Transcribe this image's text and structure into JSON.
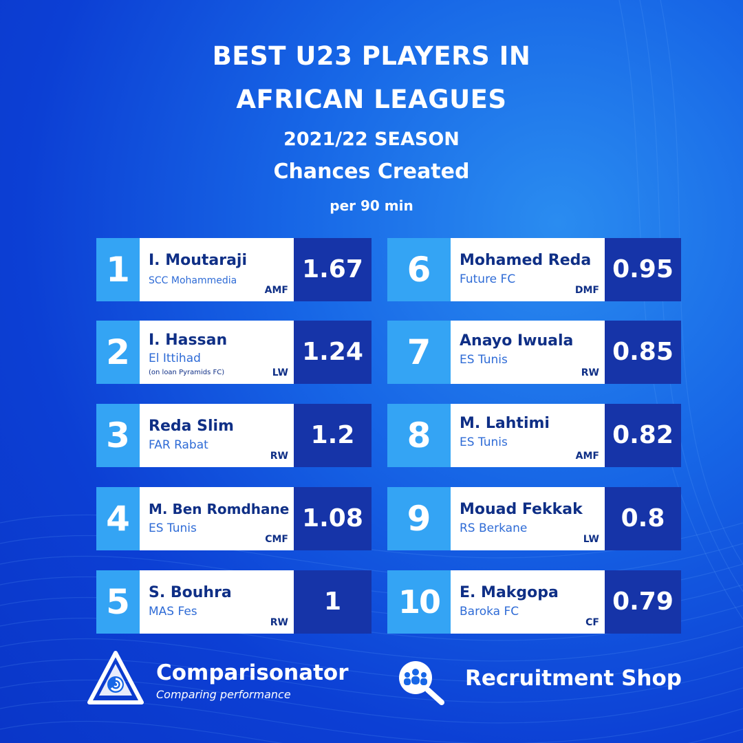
{
  "header": {
    "title_line1": "BEST U23 PLAYERS IN",
    "title_line2": "AFRICAN LEAGUES",
    "season": "2021/22 SEASON",
    "metric": "Chances Created",
    "unit": "per 90 min"
  },
  "players": [
    {
      "rank": "1",
      "name": "I. Moutaraji",
      "club": "SCC Mohammedia",
      "note": "",
      "position": "AMF",
      "value": "1.67"
    },
    {
      "rank": "2",
      "name": "I. Hassan",
      "club": "El Ittihad",
      "note": "(on loan Pyramids FC)",
      "position": "LW",
      "value": "1.24"
    },
    {
      "rank": "3",
      "name": "Reda Slim",
      "club": "FAR Rabat",
      "note": "",
      "position": "RW",
      "value": "1.2"
    },
    {
      "rank": "4",
      "name": "M. Ben Romdhane",
      "club": "ES Tunis",
      "note": "",
      "position": "CMF",
      "value": "1.08"
    },
    {
      "rank": "5",
      "name": "S. Bouhra",
      "club": "MAS Fes",
      "note": "",
      "position": "RW",
      "value": "1"
    },
    {
      "rank": "6",
      "name": "Mohamed Reda",
      "club": "Future FC",
      "note": "",
      "position": "DMF",
      "value": "0.95"
    },
    {
      "rank": "7",
      "name": "Anayo Iwuala",
      "club": "ES Tunis",
      "note": "",
      "position": "RW",
      "value": "0.85"
    },
    {
      "rank": "8",
      "name": "M. Lahtimi",
      "club": "ES Tunis",
      "note": "",
      "position": "AMF",
      "value": "0.82"
    },
    {
      "rank": "9",
      "name": "Mouad Fekkak",
      "club": "RS Berkane",
      "note": "",
      "position": "LW",
      "value": "0.8"
    },
    {
      "rank": "10",
      "name": "E. Makgopa",
      "club": "Baroka FC",
      "note": "",
      "position": "CF",
      "value": "0.79"
    }
  ],
  "footer": {
    "brand_name": "Comparisonator",
    "brand_tagline": "Comparing performance",
    "brand_icon": "comparisonator-logo-icon",
    "shop_icon": "people-magnifier-icon",
    "shop_label": "Recruitment Shop"
  },
  "colors": {
    "background": "#1766e6",
    "rank_box": "#34a4f4",
    "value_box": "#1634a8",
    "name_text": "#0f2f86",
    "club_text": "#2e6bd6"
  }
}
